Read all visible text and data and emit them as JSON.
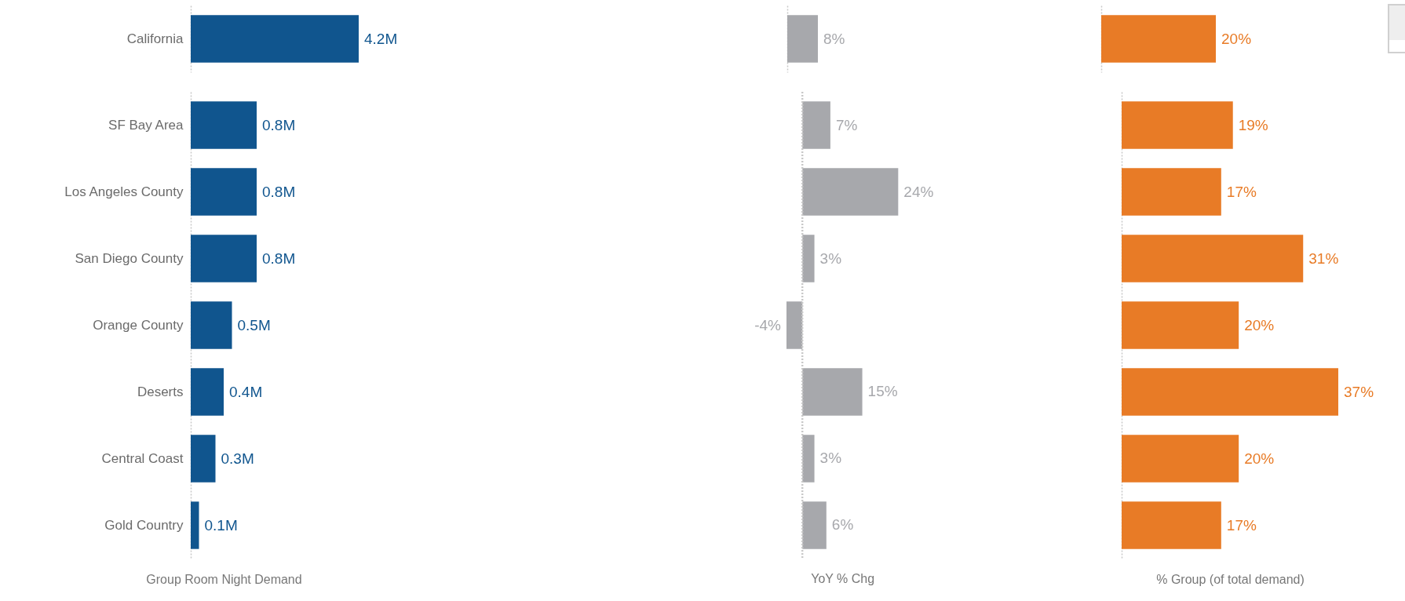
{
  "chart_data": [
    {
      "type": "bar",
      "orientation": "horizontal",
      "categories": [
        "California"
      ],
      "values": [
        4.2
      ],
      "value_labels": [
        "4.2M"
      ],
      "color": "#10558e",
      "tick_labels": "y"
    },
    {
      "type": "bar",
      "orientation": "horizontal",
      "categories": [
        null
      ],
      "values": [
        8
      ],
      "value_labels": [
        "8%"
      ],
      "color": "#a7a8ac",
      "tick_labels": false
    },
    {
      "type": "bar",
      "orientation": "horizontal",
      "categories": [
        null
      ],
      "values": [
        20
      ],
      "value_labels": [
        "20%"
      ],
      "color": "#e87b26",
      "tick_labels": false
    },
    {
      "type": "bar",
      "orientation": "horizontal",
      "categories": [
        "SF Bay Area",
        "Los Angeles County",
        "San Diego County",
        "Orange County",
        "Deserts",
        "Central Coast",
        "Gold Country"
      ],
      "values": [
        0.8,
        0.8,
        0.8,
        0.5,
        0.4,
        0.3,
        0.1
      ],
      "value_labels": [
        "0.8M",
        "0.8M",
        "0.8M",
        "0.5M",
        "0.4M",
        "0.3M",
        "0.1M"
      ],
      "color": "#10558e",
      "xlabel": "Group Room Night Demand",
      "tick_labels": "y"
    },
    {
      "type": "bar",
      "orientation": "horizontal",
      "categories": [
        null,
        null,
        null,
        null,
        null,
        null,
        null
      ],
      "values": [
        7,
        24,
        3,
        -4,
        15,
        3,
        6
      ],
      "value_labels": [
        "7%",
        "24%",
        "3%",
        "-4%",
        "15%",
        "3%",
        "6%"
      ],
      "color": "#a7a8ac",
      "xlabel": "YoY % Chg",
      "tick_labels": false,
      "ref_lines": [
        {
          "axis": "x",
          "value": 0,
          "color": "#c8c8c8",
          "line_style": "dotted"
        }
      ]
    },
    {
      "type": "bar",
      "orientation": "horizontal",
      "categories": [
        null,
        null,
        null,
        null,
        null,
        null,
        null
      ],
      "values": [
        19,
        17,
        31,
        20,
        37,
        20,
        17
      ],
      "value_labels": [
        "19%",
        "17%",
        "31%",
        "20%",
        "37%",
        "20%",
        "17%"
      ],
      "color": "#e87b26",
      "xlabel": "% Group (of total demand)",
      "tick_labels": false
    }
  ]
}
